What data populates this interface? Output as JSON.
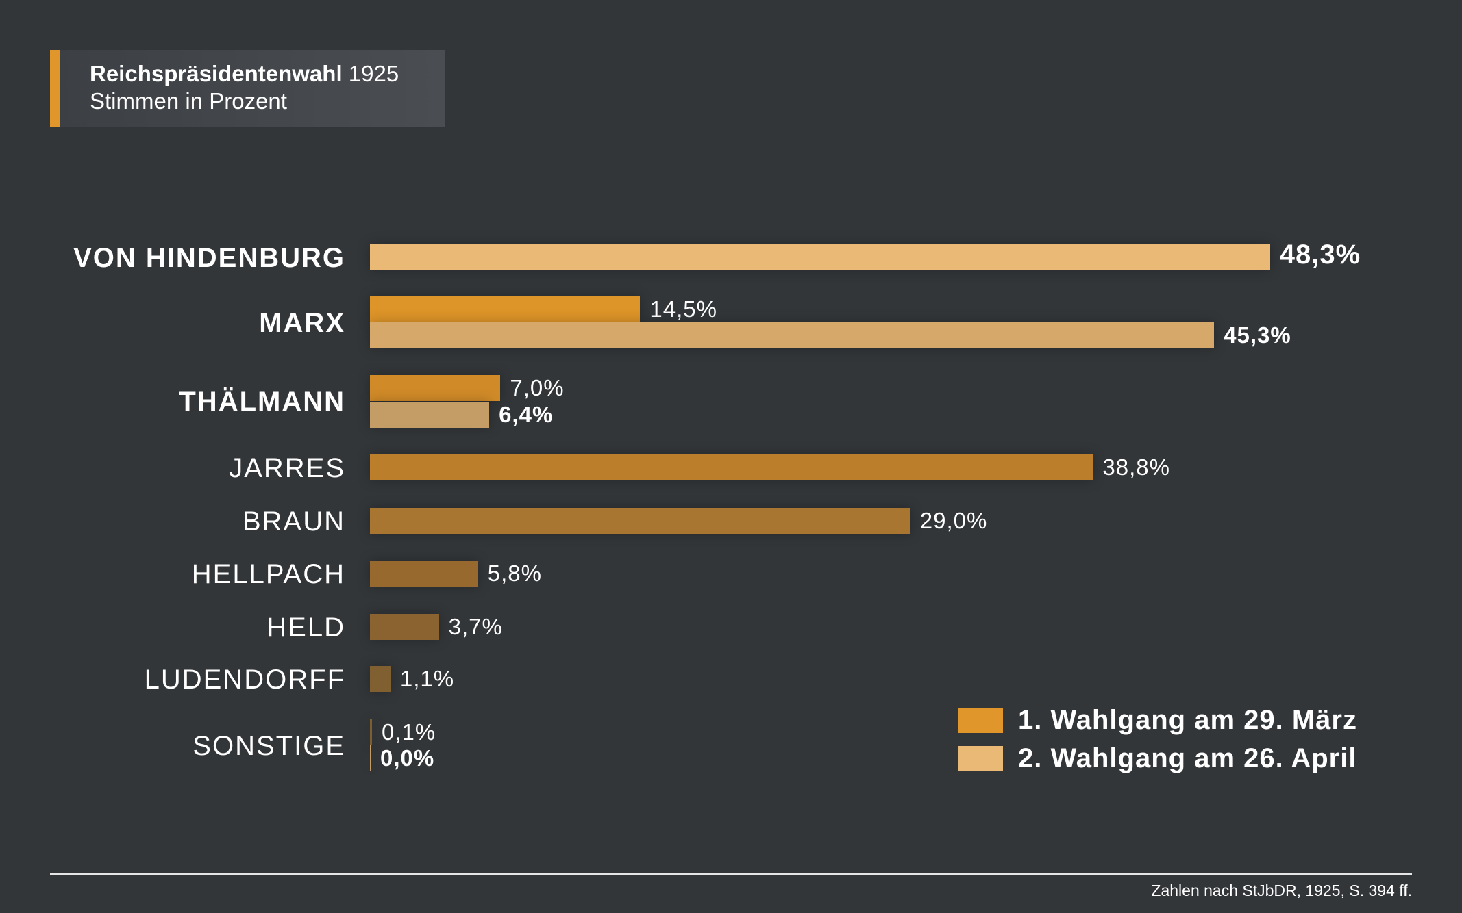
{
  "title": {
    "bold": "Reichspräsidentenwahl",
    "year": "1925",
    "subtitle": "Stimmen in Prozent"
  },
  "chart_data": {
    "type": "bar",
    "orientation": "horizontal",
    "title": "Reichspräsidentenwahl 1925",
    "subtitle": "Stimmen in Prozent",
    "unit": "%",
    "xlim": [
      0,
      50
    ],
    "grid": false,
    "legend_position": "bottom-right",
    "legend": [
      "1. Wahlgang am 29. März",
      "2. Wahlgang am 26. April"
    ],
    "categories": [
      "VON HINDENBURG",
      "MARX",
      "THÄLMANN",
      "JARRES",
      "BRAUN",
      "HELLPACH",
      "HELD",
      "LUDENDORFF",
      "SONSTIGE"
    ],
    "category_bold": [
      true,
      true,
      true,
      false,
      false,
      false,
      false,
      false,
      false
    ],
    "series": [
      {
        "name": "1. Wahlgang am 29. März",
        "values": [
          null,
          14.5,
          7.0,
          38.8,
          29.0,
          5.8,
          3.7,
          1.1,
          0.1
        ],
        "labels": [
          "",
          "14,5%",
          "7,0%",
          "38,8%",
          "29,0%",
          "5,8%",
          "3,7%",
          "1,1%",
          "0,1%"
        ],
        "colors": [
          "#e0962a",
          "#dd9428",
          "#d08a28",
          "#bb7f2c",
          "#a87631",
          "#98692f",
          "#8a6330",
          "#806030",
          "#7d5e30"
        ]
      },
      {
        "name": "2. Wahlgang am 26. April",
        "values": [
          48.3,
          45.3,
          6.4,
          null,
          null,
          null,
          null,
          null,
          0.0
        ],
        "labels": [
          "48,3%",
          "45,3%",
          "6,4%",
          "",
          "",
          "",
          "",
          "",
          "0,0%"
        ],
        "colors": [
          "#e9b975",
          "#d6a96b",
          "#c49c66",
          "",
          "",
          "",
          "",
          "",
          "#c49c66"
        ]
      }
    ],
    "legend_colors": [
      "#e0962a",
      "#e9b975"
    ]
  },
  "source": "Zahlen nach StJbDR, 1925, S. 394 ff."
}
